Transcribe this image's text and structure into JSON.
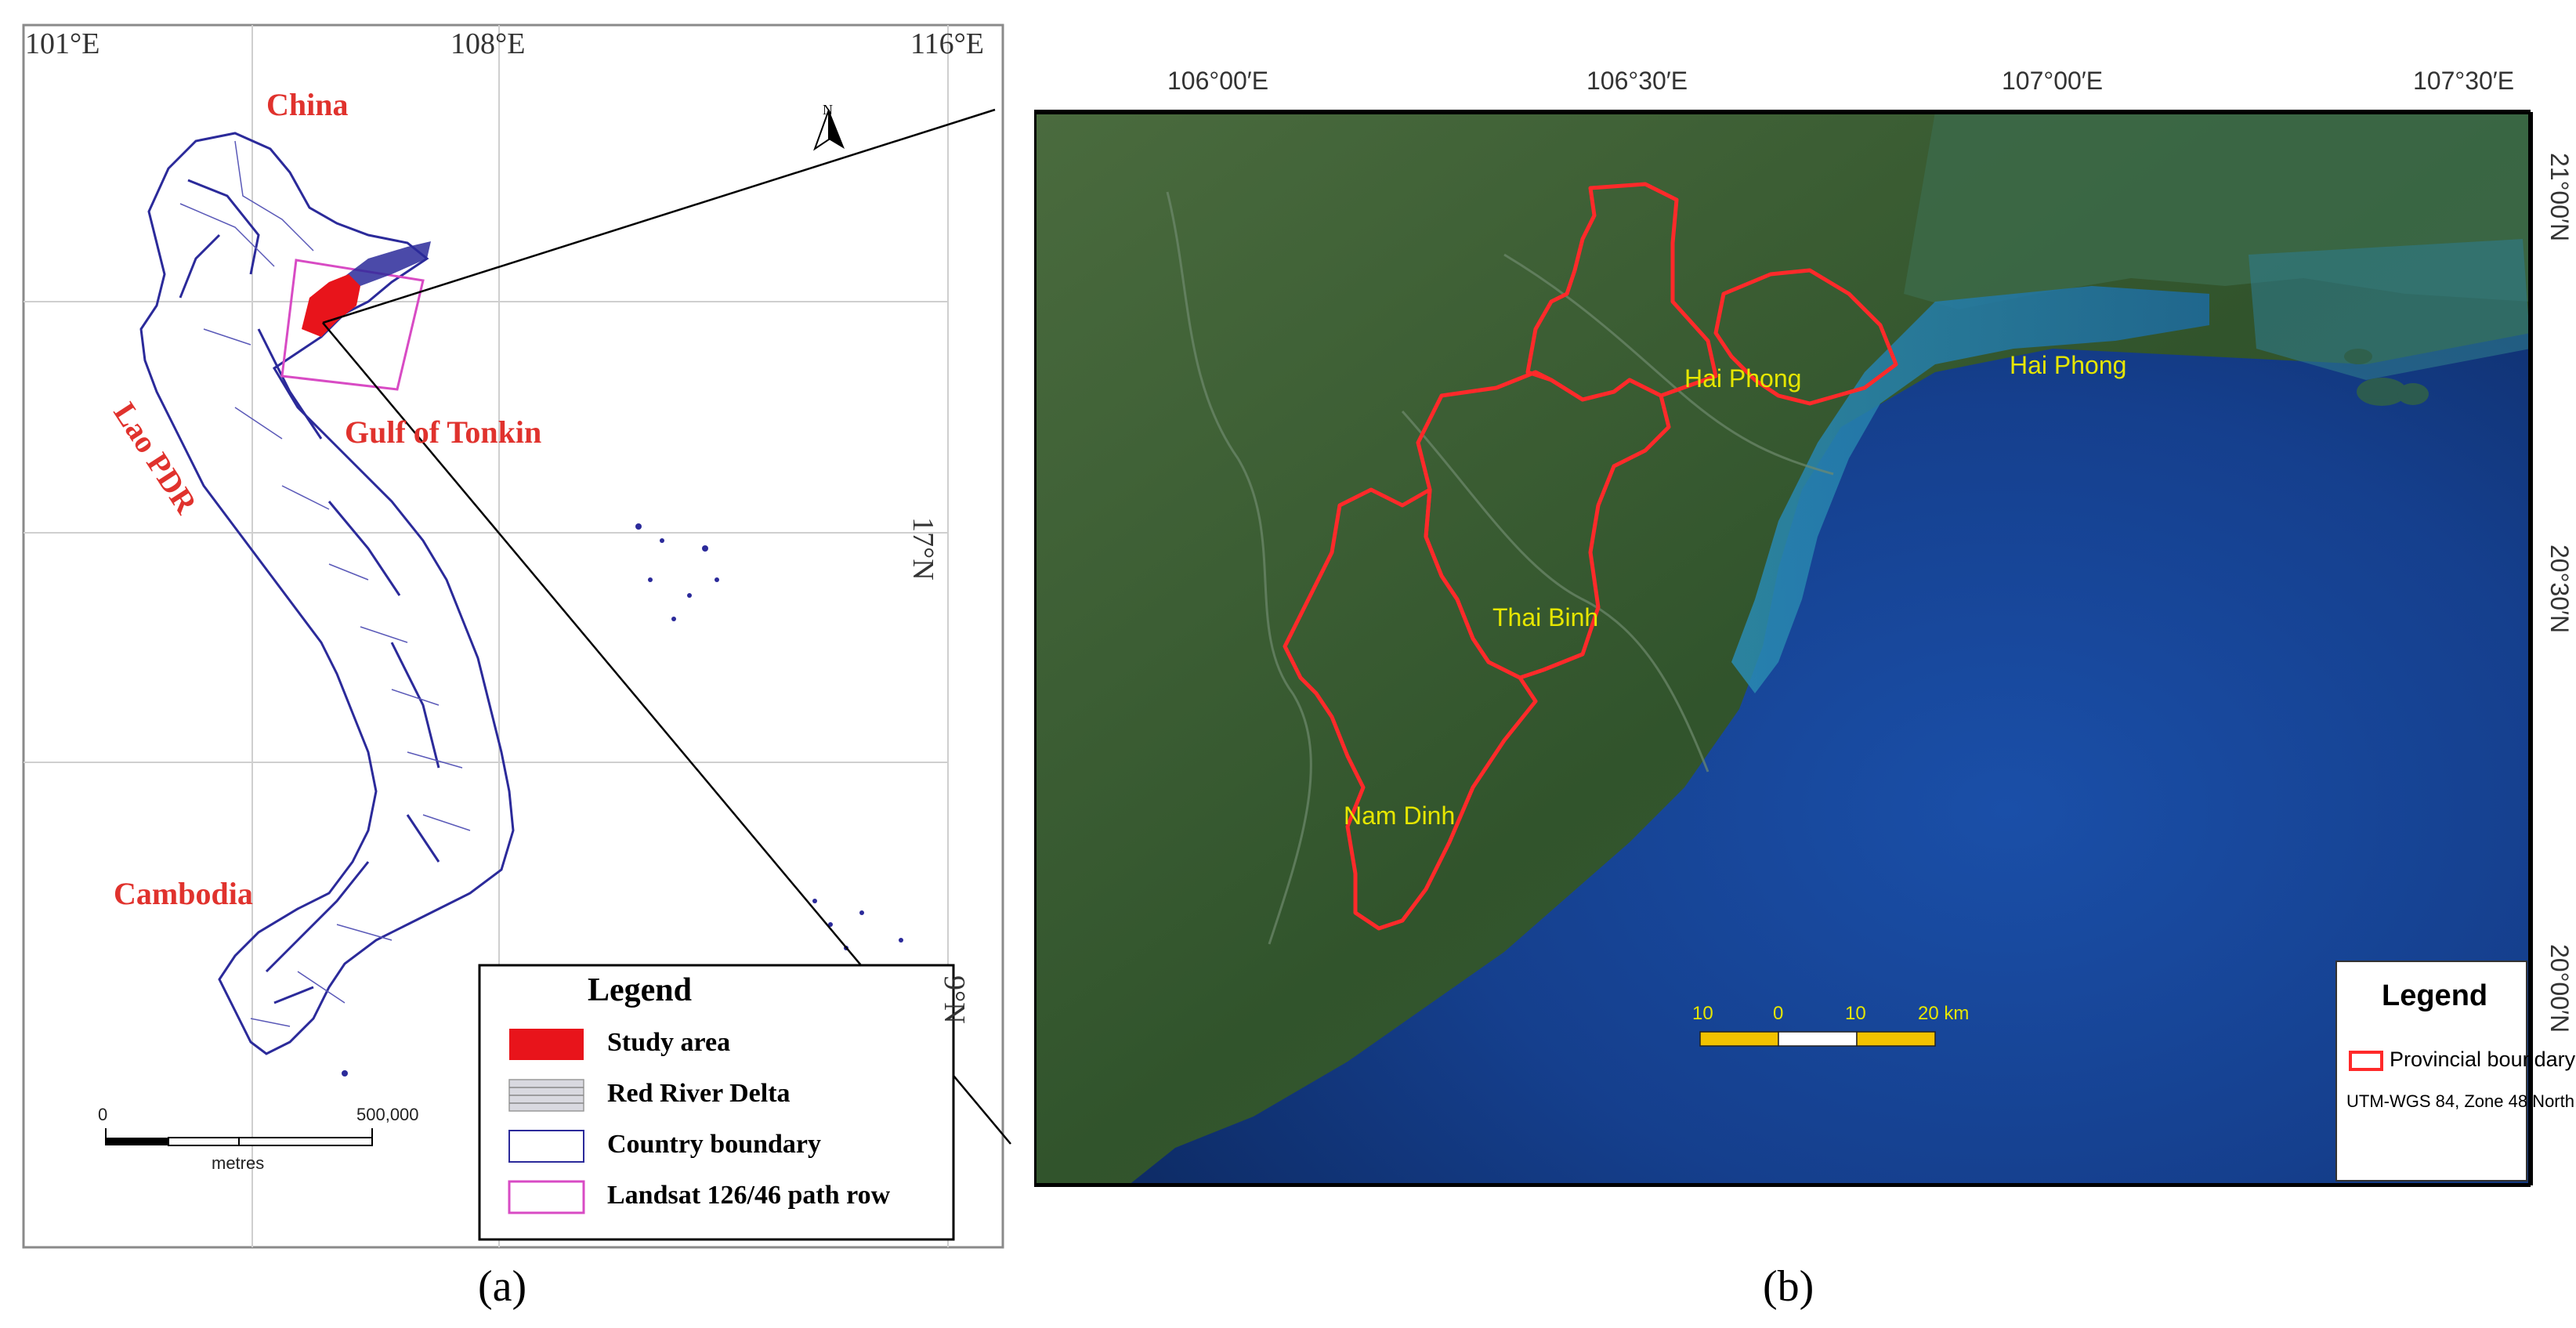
{
  "panel_a": {
    "top_ticks": [
      "101°E",
      "108°E",
      "116°E"
    ],
    "right_ticks": [
      "17°N",
      "9°N"
    ],
    "labels": {
      "china": "China",
      "lao": "Lao PDR",
      "gulf": "Gulf of Tonkin",
      "cambodia": "Cambodia"
    },
    "north": "N",
    "scale": {
      "start": "0",
      "end": "500,000",
      "unit": "metres"
    },
    "legend": {
      "title": "Legend",
      "items": [
        {
          "label": "Study area",
          "swatch": "#e8141b"
        },
        {
          "label": "Red River Delta",
          "swatch": "#cfcfd6"
        },
        {
          "label": "Country boundary",
          "swatch": "#2b2a9a"
        },
        {
          "label": "Landsat 126/46 path row",
          "swatch": "#d84bc4"
        }
      ]
    },
    "caption": "(a)"
  },
  "panel_b": {
    "top_ticks": [
      "106°00′E",
      "106°30′E",
      "107°00′E",
      "107°30′E"
    ],
    "right_ticks": [
      "21°00′N",
      "20°30′N",
      "20°00′N"
    ],
    "provinces": [
      "Hai Phong",
      "Hai Phong",
      "Thai Binh",
      "Nam Dinh"
    ],
    "scale": {
      "labels": [
        "10",
        "0",
        "10",
        "20 km"
      ]
    },
    "legend": {
      "title": "Legend",
      "item": "Provincial boundary",
      "projection": "UTM-WGS 84, Zone 48 North"
    },
    "caption": "(b)",
    "colors": {
      "boundary": "#ff2a2a",
      "label": "#e6e600",
      "sea": "#143f8a",
      "land": "#2f5a2c"
    }
  }
}
